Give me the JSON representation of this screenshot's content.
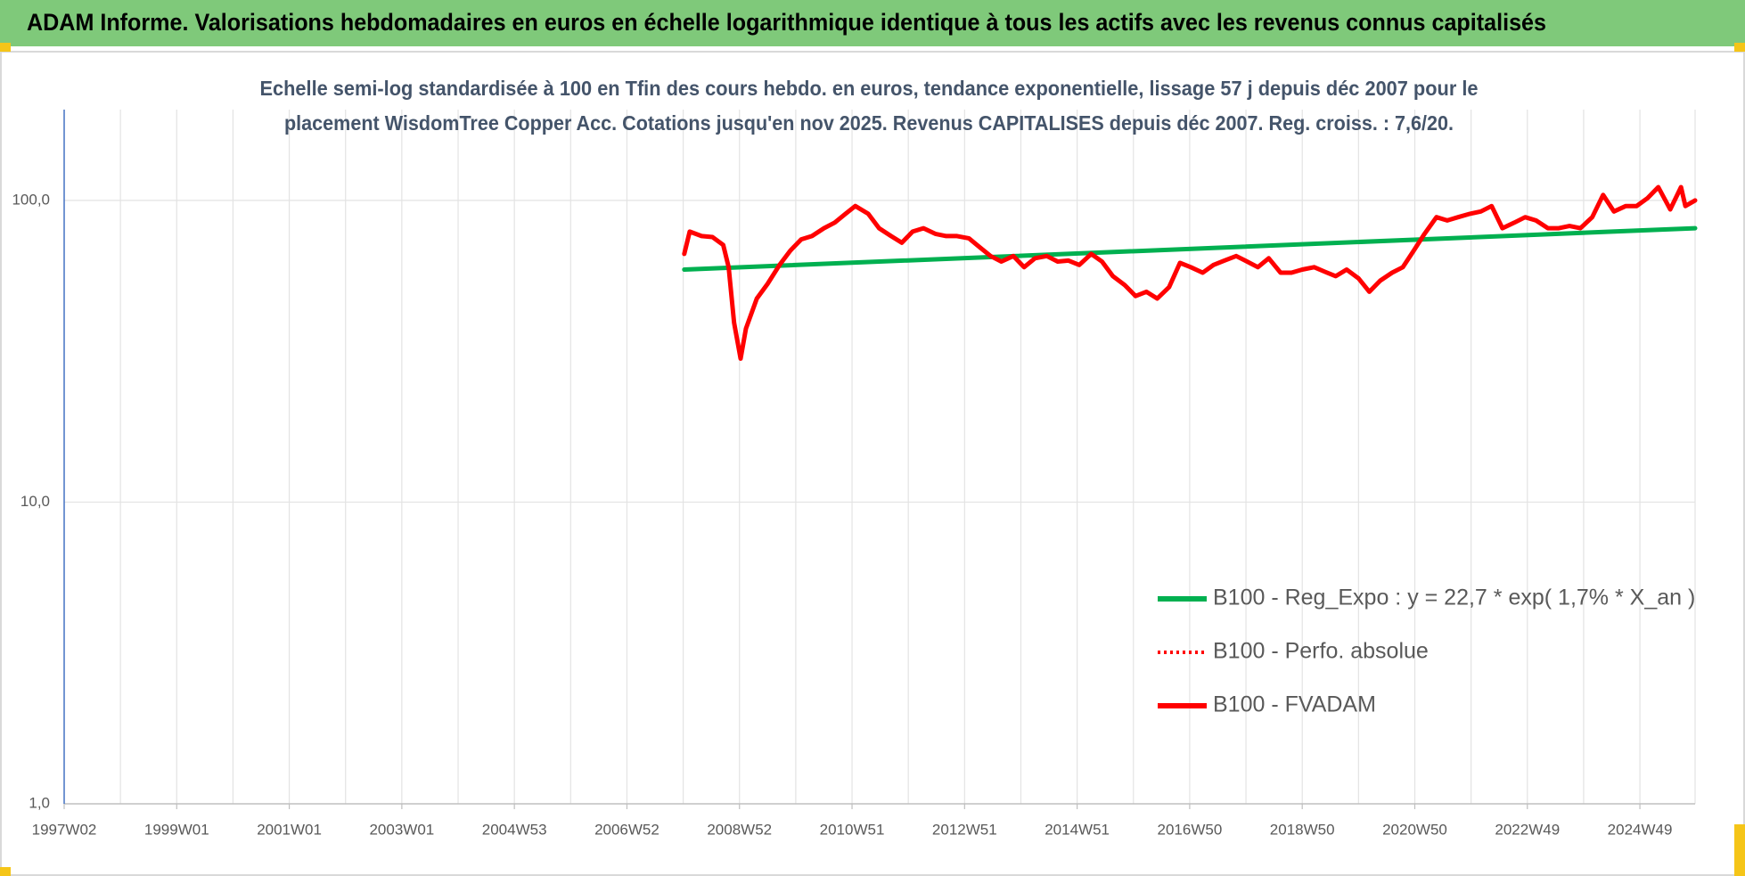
{
  "chart_data": {
    "type": "line",
    "title": "ADAM Informe. Valorisations hebdomadaires en euros en échelle logarithmique identique à tous les actifs avec les revenus connus capitalisés",
    "subtitle": [
      "Echelle semi-log standardisée à 100 en Tfin des cours hebdo. en euros, tendance exponentielle, lissage 57 j depuis déc 2007 pour le",
      "placement WisdomTree Copper Acc. Cotations jusqu'en nov 2025. Revenus CAPITALISES depuis déc 2007. Reg. croiss. : 7,6/20."
    ],
    "xlim": [
      0,
      1507
    ],
    "xticks": [
      {
        "value": 0,
        "label": "1997W02"
      },
      {
        "value": 104,
        "label": "1999W01"
      },
      {
        "value": 208,
        "label": "2001W01"
      },
      {
        "value": 312,
        "label": "2003W01"
      },
      {
        "value": 416,
        "label": "2004W53"
      },
      {
        "value": 520,
        "label": "2006W52"
      },
      {
        "value": 624,
        "label": "2008W52"
      },
      {
        "value": 728,
        "label": "2010W51"
      },
      {
        "value": 832,
        "label": "2012W51"
      },
      {
        "value": 936,
        "label": "2014W51"
      },
      {
        "value": 1040,
        "label": "2016W50"
      },
      {
        "value": 1144,
        "label": "2018W50"
      },
      {
        "value": 1248,
        "label": "2020W50"
      },
      {
        "value": 1352,
        "label": "2022W49"
      },
      {
        "value": 1456,
        "label": "2024W49"
      }
    ],
    "ylim": [
      1,
      200
    ],
    "yticks": [
      {
        "value": 1,
        "label": "1,0"
      },
      {
        "value": 10,
        "label": "10,0"
      },
      {
        "value": 100,
        "label": "100,0"
      }
    ],
    "log_y": true,
    "grid": true,
    "legend": "center-right",
    "series": [
      {
        "name": "B100 - Reg_Expo : y = 22,7 * exp( 1,7% *  X_an )",
        "color": "#00b050",
        "style": "solid",
        "x": [
          573,
          1507
        ],
        "values": [
          59.0,
          80.9
        ]
      },
      {
        "name": "B100 - Perfo. absolue",
        "color": "#ff0000",
        "style": "dotted",
        "x": [],
        "values": []
      },
      {
        "name": "B100 - FVADAM",
        "color": "#ff0000",
        "style": "solid",
        "x": [
          573,
          578,
          589,
          599,
          609,
          614,
          619,
          625,
          630,
          640,
          650,
          661,
          671,
          681,
          691,
          702,
          712,
          722,
          731,
          743,
          753,
          764,
          774,
          784,
          794,
          805,
          815,
          825,
          836,
          846,
          856,
          866,
          877,
          887,
          897,
          908,
          918,
          928,
          938,
          949,
          959,
          969,
          980,
          990,
          1000,
          1010,
          1021,
          1031,
          1041,
          1052,
          1062,
          1072,
          1083,
          1093,
          1103,
          1113,
          1124,
          1134,
          1144,
          1155,
          1165,
          1175,
          1185,
          1196,
          1206,
          1216,
          1227,
          1237,
          1247,
          1257,
          1268,
          1278,
          1288,
          1299,
          1309,
          1319,
          1329,
          1340,
          1350,
          1360,
          1371,
          1381,
          1391,
          1401,
          1412,
          1422,
          1432,
          1443,
          1453,
          1463,
          1473,
          1484,
          1494,
          1498,
          1507
        ],
        "values": [
          66.5,
          78.8,
          76.2,
          75.6,
          71.2,
          60.1,
          39.3,
          29.9,
          37.6,
          47.3,
          52.9,
          61.1,
          68.2,
          74.3,
          76.2,
          80.9,
          84.4,
          90.3,
          95.8,
          90.3,
          80.9,
          76.2,
          72.4,
          78.8,
          80.9,
          77.5,
          76.2,
          76.2,
          74.9,
          70.0,
          65.4,
          62.7,
          65.4,
          60.1,
          64.3,
          65.4,
          62.7,
          63.2,
          61.1,
          66.5,
          62.7,
          56.1,
          52.4,
          48.2,
          49.8,
          47.3,
          51.6,
          62.1,
          60.1,
          57.6,
          61.1,
          63.2,
          65.4,
          62.7,
          60.1,
          64.3,
          57.6,
          57.6,
          59.0,
          60.1,
          58.0,
          56.1,
          59.0,
          55.2,
          49.8,
          54.2,
          57.6,
          60.1,
          68.2,
          77.5,
          88.0,
          85.8,
          88.0,
          90.3,
          91.9,
          95.8,
          80.9,
          84.4,
          88.0,
          85.8,
          80.9,
          80.9,
          82.3,
          80.9,
          88.0,
          104.3,
          91.9,
          95.8,
          95.8,
          101.7,
          110.7,
          93.4,
          110.7,
          95.8,
          100.0
        ]
      }
    ]
  }
}
